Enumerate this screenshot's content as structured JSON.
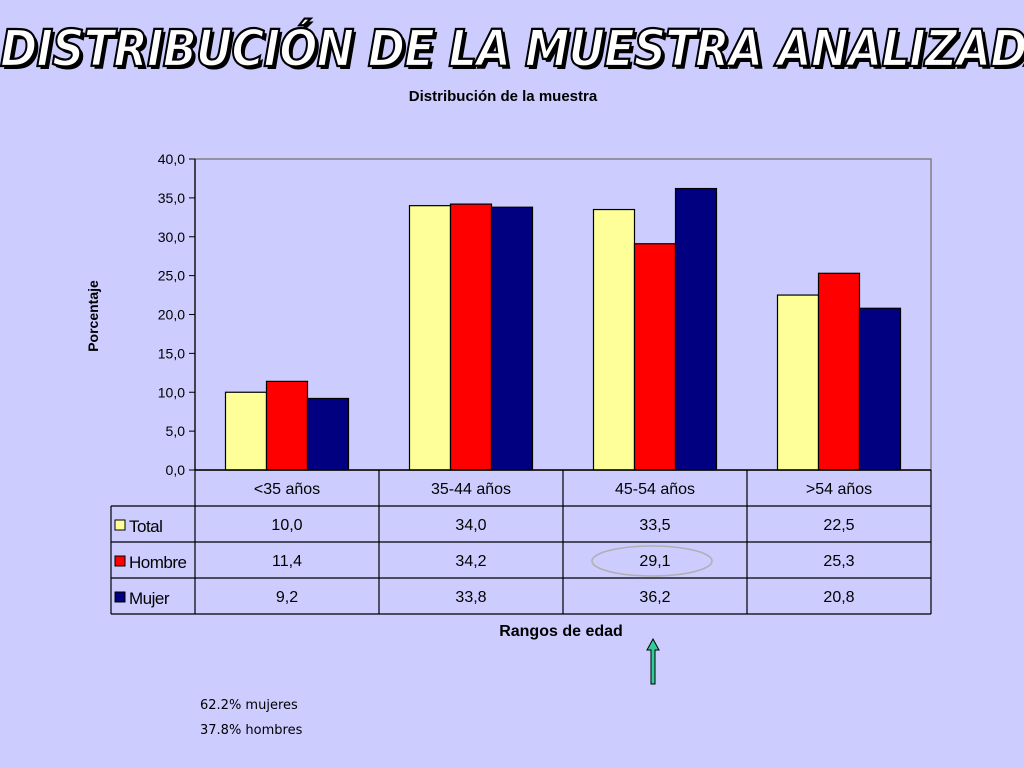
{
  "slide_title": "DISTRIBUCIÓN DE LA MUESTRA ANALIZADA",
  "notes": [
    "62.2% mujeres",
    "37.8% hombres"
  ],
  "colors": {
    "background": "#ccccff",
    "total": "#ffff99",
    "hombre": "#ff0000",
    "mujer": "#000080",
    "highlight": "#b0b0b0",
    "arrow": "#33cc99"
  },
  "chart_data": {
    "type": "bar",
    "title": "Distribución de la muestra",
    "xlabel": "Rangos de edad",
    "ylabel": "Porcentaje",
    "ylim": [
      0,
      40
    ],
    "yticks": [
      "0,0",
      "5,0",
      "10,0",
      "15,0",
      "20,0",
      "25,0",
      "30,0",
      "35,0",
      "40,0"
    ],
    "categories": [
      "<35 años",
      "35-44 años",
      "45-54 años",
      ">54 años"
    ],
    "series": [
      {
        "name": "Total",
        "color": "#ffff99",
        "values": [
          10.0,
          34.0,
          33.5,
          22.5
        ],
        "labels": [
          "10,0",
          "34,0",
          "33,5",
          "22,5"
        ]
      },
      {
        "name": "Hombre",
        "color": "#ff0000",
        "values": [
          11.4,
          34.2,
          29.1,
          25.3
        ],
        "labels": [
          "11,4",
          "34,2",
          "29,1",
          "25,3"
        ]
      },
      {
        "name": "Mujer",
        "color": "#000080",
        "values": [
          9.2,
          33.8,
          36.2,
          20.8
        ],
        "labels": [
          "9,2",
          "33,8",
          "36,2",
          "20,8"
        ]
      }
    ],
    "legend": "data-table",
    "grid": false,
    "highlighted_cell": "Hombre / 45-54 años"
  }
}
